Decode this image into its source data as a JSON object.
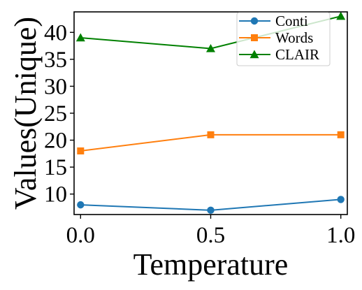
{
  "chart_data": {
    "type": "line",
    "title": "",
    "xlabel": "Temperature",
    "ylabel": "Values(Unique)",
    "x": [
      0.0,
      0.5,
      1.0
    ],
    "xticks": [
      "0.0",
      "0.5",
      "1.0"
    ],
    "yticks": [
      "10",
      "15",
      "20",
      "25",
      "30",
      "35",
      "40"
    ],
    "xlim": [
      -0.025,
      1.025
    ],
    "ylim": [
      6.2,
      43.8
    ],
    "grid": false,
    "legend": "top-right",
    "series": [
      {
        "name": "Conti",
        "values": [
          8,
          7,
          9
        ],
        "color": "#1f77b4",
        "marker": "circle"
      },
      {
        "name": "Words",
        "values": [
          18,
          21,
          21
        ],
        "color": "#ff7f0e",
        "marker": "square"
      },
      {
        "name": "CLAIR",
        "values": [
          39,
          37,
          43
        ],
        "color": "#008000",
        "marker": "triangle"
      }
    ]
  }
}
